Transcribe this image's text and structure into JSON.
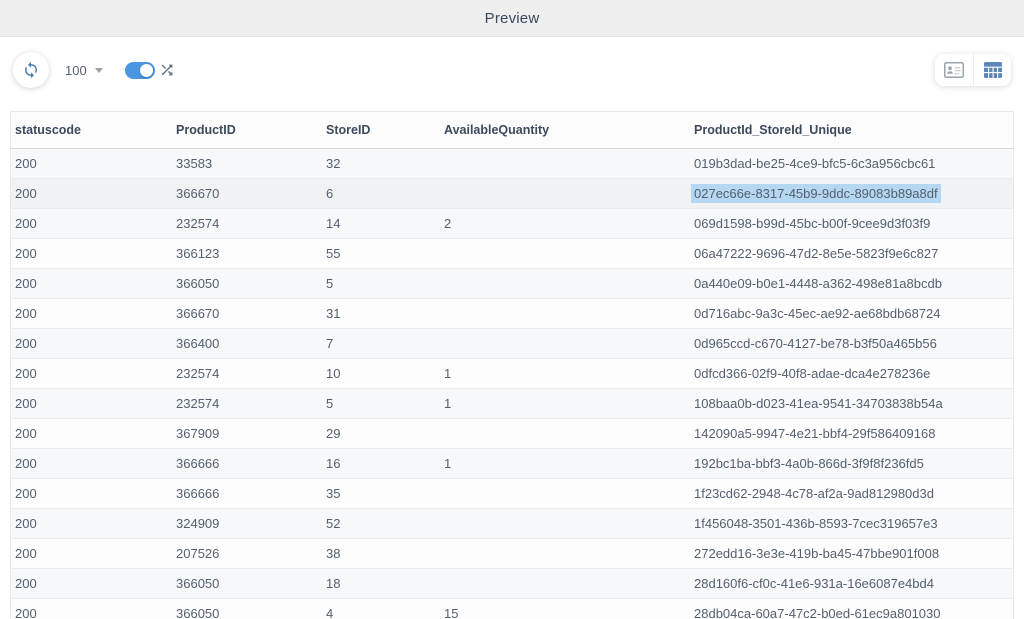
{
  "topbar": {
    "title": "Preview"
  },
  "toolbar": {
    "refresh_button": "refresh",
    "page_size": "100",
    "shuffle_toggle_on": true,
    "active_view": "table"
  },
  "table": {
    "columns": [
      "statuscode",
      "ProductID",
      "StoreID",
      "AvailableQuantity",
      "ProductId_StoreId_Unique"
    ],
    "rows": [
      [
        "200",
        "33583",
        "32",
        "",
        "019b3dad-be25-4ce9-bfc5-6c3a956cbc61"
      ],
      [
        "200",
        "366670",
        "6",
        "",
        "027ec66e-8317-45b9-9ddc-89083b89a8df"
      ],
      [
        "200",
        "232574",
        "14",
        "2",
        "069d1598-b99d-45bc-b00f-9cee9d3f03f9"
      ],
      [
        "200",
        "366123",
        "55",
        "",
        "06a47222-9696-47d2-8e5e-5823f9e6c827"
      ],
      [
        "200",
        "366050",
        "5",
        "",
        "0a440e09-b0e1-4448-a362-498e81a8bcdb"
      ],
      [
        "200",
        "366670",
        "31",
        "",
        "0d716abc-9a3c-45ec-ae92-ae68bdb68724"
      ],
      [
        "200",
        "366400",
        "7",
        "",
        "0d965ccd-c670-4127-be78-b3f50a465b56"
      ],
      [
        "200",
        "232574",
        "10",
        "1",
        "0dfcd366-02f9-40f8-adae-dca4e278236e"
      ],
      [
        "200",
        "232574",
        "5",
        "1",
        "108baa0b-d023-41ea-9541-34703838b54a"
      ],
      [
        "200",
        "367909",
        "29",
        "",
        "142090a5-9947-4e21-bbf4-29f586409168"
      ],
      [
        "200",
        "366666",
        "16",
        "1",
        "192bc1ba-bbf3-4a0b-866d-3f9f8f236fd5"
      ],
      [
        "200",
        "366666",
        "35",
        "",
        "1f23cd62-2948-4c78-af2a-9ad812980d3d"
      ],
      [
        "200",
        "324909",
        "52",
        "",
        "1f456048-3501-436b-8593-7cec319657e3"
      ],
      [
        "200",
        "207526",
        "38",
        "",
        "272edd16-3e3e-419b-ba45-47bbe901f008"
      ],
      [
        "200",
        "366050",
        "18",
        "",
        "28d160f6-cf0c-41e6-931a-16e6087e4bd4"
      ],
      [
        "200",
        "366050",
        "4",
        "15",
        "28db04ca-60a7-47c2-b0ed-61ec9a801030"
      ]
    ],
    "selected_cell": {
      "row": 1,
      "col": 4,
      "value": "027ec66e-8317-45b9-9ddc-89083b89a8df"
    }
  },
  "colors": {
    "topbar_bg": "#eeeeee",
    "title_text": "#3a4a5c",
    "toggle_accent": "#4a96e2",
    "refresh_icon": "#4d7fae",
    "grid_icon": "#5c88b8",
    "shuffle_icon": "#5b6b7c",
    "selection_highlight": "#b5d7f2",
    "row_stripe": "#f7f8f9"
  }
}
